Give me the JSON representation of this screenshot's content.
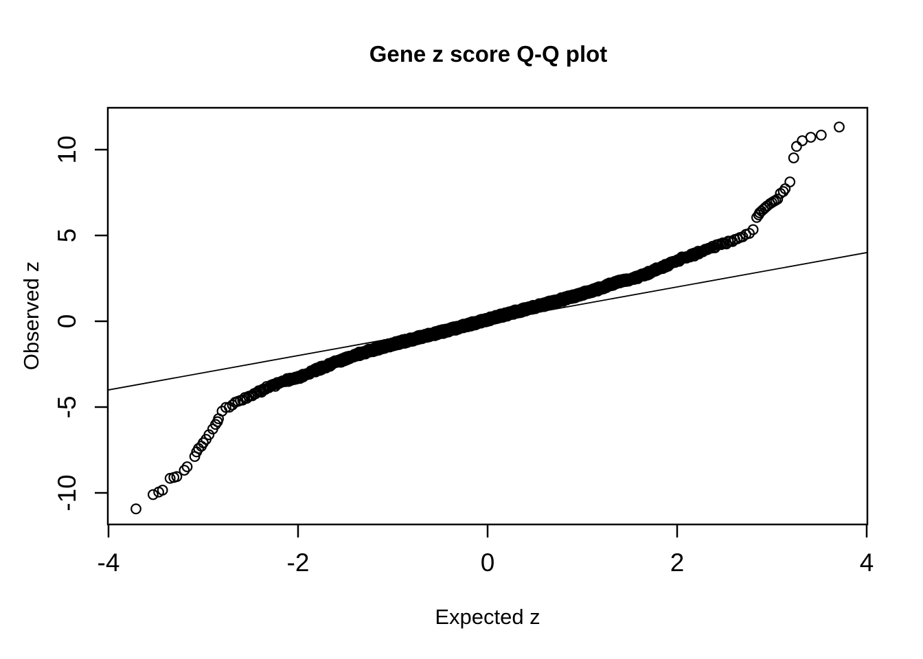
{
  "page": {
    "background": "#ffffff",
    "foreground": "#000000"
  },
  "chart_data": {
    "type": "scatter",
    "subtype": "qq-plot",
    "title": "Gene z score Q-Q plot",
    "xlabel": "Expected z",
    "ylabel": "Observed z",
    "x_ticks": [
      -4,
      -2,
      0,
      2,
      4
    ],
    "x_tick_labels": [
      "-4",
      "-2",
      "0",
      "2",
      "4"
    ],
    "y_ticks": [
      -10,
      -5,
      0,
      5,
      10
    ],
    "y_tick_labels": [
      "-10",
      "-5",
      "0",
      "5",
      "10"
    ],
    "xlim": [
      -4.01,
      4.01
    ],
    "ylim": [
      -11.84,
      12.44
    ],
    "grid": false,
    "legend": false,
    "point_color": "#000000",
    "marker": {
      "shape": "open-circle",
      "radius_px": 6.8,
      "stroke_px": 2.2
    },
    "reference_line": {
      "slope": 1,
      "intercept": 0,
      "desc": "identity line y = x",
      "color": "#000000"
    },
    "n_points_dense": 3000,
    "dense_range": [
      -2.83,
      2.83
    ],
    "jitter_amplitude": 0.13,
    "curve_knots": [
      [
        -2.84,
        -5.4
      ],
      [
        -2.78,
        -5.15
      ],
      [
        -2.72,
        -4.95
      ],
      [
        -2.65,
        -4.72
      ],
      [
        -2.6,
        -4.6
      ],
      [
        -2.5,
        -4.3
      ],
      [
        -2.4,
        -4.05
      ],
      [
        -2.3,
        -3.8
      ],
      [
        -2.2,
        -3.6
      ],
      [
        -2.1,
        -3.43
      ],
      [
        -2.0,
        -3.28
      ],
      [
        -1.9,
        -3.05
      ],
      [
        -1.8,
        -2.82
      ],
      [
        -1.7,
        -2.6
      ],
      [
        -1.6,
        -2.38
      ],
      [
        -1.5,
        -2.18
      ],
      [
        -1.4,
        -2.0
      ],
      [
        -1.3,
        -1.82
      ],
      [
        -1.2,
        -1.65
      ],
      [
        -1.1,
        -1.5
      ],
      [
        -1.0,
        -1.35
      ],
      [
        -0.9,
        -1.2
      ],
      [
        -0.8,
        -1.06
      ],
      [
        -0.7,
        -0.92
      ],
      [
        -0.6,
        -0.78
      ],
      [
        -0.5,
        -0.64
      ],
      [
        -0.4,
        -0.5
      ],
      [
        -0.3,
        -0.35
      ],
      [
        -0.2,
        -0.2
      ],
      [
        -0.1,
        -0.05
      ],
      [
        0.0,
        0.1
      ],
      [
        0.1,
        0.25
      ],
      [
        0.2,
        0.4
      ],
      [
        0.3,
        0.55
      ],
      [
        0.4,
        0.7
      ],
      [
        0.5,
        0.84
      ],
      [
        0.6,
        0.98
      ],
      [
        0.7,
        1.13
      ],
      [
        0.8,
        1.28
      ],
      [
        0.9,
        1.44
      ],
      [
        1.0,
        1.6
      ],
      [
        1.1,
        1.77
      ],
      [
        1.2,
        1.95
      ],
      [
        1.3,
        2.14
      ],
      [
        1.4,
        2.34
      ],
      [
        1.5,
        2.45
      ],
      [
        1.6,
        2.62
      ],
      [
        1.7,
        2.82
      ],
      [
        1.8,
        3.05
      ],
      [
        1.9,
        3.3
      ],
      [
        2.0,
        3.55
      ],
      [
        2.1,
        3.75
      ],
      [
        2.2,
        3.95
      ],
      [
        2.3,
        4.15
      ],
      [
        2.4,
        4.36
      ],
      [
        2.5,
        4.55
      ],
      [
        2.6,
        4.72
      ],
      [
        2.7,
        4.95
      ],
      [
        2.75,
        5.08
      ],
      [
        2.8,
        5.35
      ],
      [
        2.83,
        5.7
      ]
    ],
    "left_tail_points": [
      [
        -3.71,
        -10.93
      ],
      [
        -3.53,
        -10.1
      ],
      [
        -3.47,
        -9.95
      ],
      [
        -3.43,
        -9.84
      ],
      [
        -3.35,
        -9.15
      ],
      [
        -3.31,
        -9.1
      ],
      [
        -3.28,
        -9.05
      ],
      [
        -3.2,
        -8.68
      ],
      [
        -3.17,
        -8.48
      ],
      [
        -3.09,
        -7.88
      ],
      [
        -3.07,
        -7.61
      ],
      [
        -3.05,
        -7.41
      ],
      [
        -3.02,
        -7.28
      ],
      [
        -3.0,
        -7.08
      ],
      [
        -2.97,
        -6.88
      ],
      [
        -2.94,
        -6.61
      ],
      [
        -2.9,
        -6.28
      ],
      [
        -2.87,
        -6.01
      ],
      [
        -2.85,
        -5.85
      ],
      [
        -2.84,
        -5.68
      ]
    ],
    "right_tail_points": [
      [
        2.84,
        6.05
      ],
      [
        2.86,
        6.2
      ],
      [
        2.87,
        6.32
      ],
      [
        2.89,
        6.42
      ],
      [
        2.91,
        6.52
      ],
      [
        2.93,
        6.62
      ],
      [
        2.95,
        6.72
      ],
      [
        2.98,
        6.85
      ],
      [
        3.0,
        6.92
      ],
      [
        3.02,
        6.99
      ],
      [
        3.04,
        7.05
      ],
      [
        3.06,
        7.12
      ],
      [
        3.09,
        7.45
      ],
      [
        3.12,
        7.56
      ],
      [
        3.14,
        7.72
      ],
      [
        3.19,
        8.12
      ],
      [
        3.23,
        9.52
      ],
      [
        3.26,
        10.19
      ],
      [
        3.32,
        10.52
      ],
      [
        3.41,
        10.72
      ],
      [
        3.52,
        10.85
      ],
      [
        3.71,
        11.32
      ]
    ]
  }
}
